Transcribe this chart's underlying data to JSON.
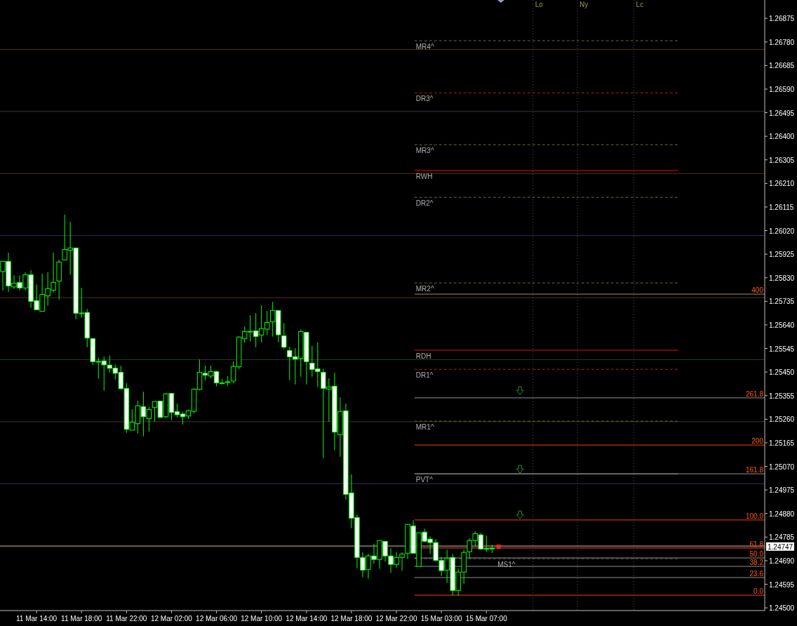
{
  "chart_data": {
    "type": "candlestick",
    "categories": [
      null,
      null,
      null,
      null,
      null,
      null,
      "11 Mar 14:00",
      null,
      null,
      null,
      null,
      null,
      null,
      null,
      "11 Mar 18:00",
      null,
      null,
      null,
      null,
      null,
      null,
      null,
      "11 Mar 22:00",
      null,
      null,
      null,
      null,
      null,
      null,
      null,
      "12 Mar 02:00",
      null,
      null,
      null,
      null,
      null,
      null,
      null,
      "12 Mar 06:00",
      null,
      null,
      null,
      null,
      null,
      null,
      null,
      "12 Mar 10:00",
      null,
      null,
      null,
      null,
      null,
      null,
      null,
      "12 Mar 14:00",
      null,
      null,
      null,
      null,
      null,
      null,
      null,
      "12 Mar 18:00",
      null,
      null,
      null,
      null,
      null,
      null,
      null,
      "12 Mar 22:00",
      null,
      null,
      null,
      null,
      null,
      null,
      null,
      "15 Mar 03:00",
      null,
      null,
      null,
      null,
      null,
      null,
      null,
      "15 Mar 07:00",
      null,
      null,
      null,
      null,
      null,
      null,
      null,
      null,
      null,
      null,
      null,
      null,
      null,
      null,
      null,
      null,
      null,
      null,
      null,
      null,
      null,
      null,
      null,
      null,
      null,
      null,
      null,
      null,
      null,
      null,
      null,
      null,
      null,
      null,
      null,
      null,
      null,
      null,
      null,
      null,
      null,
      null,
      null,
      null,
      null,
      null,
      null,
      null,
      null
    ],
    "ohlc": [
      [
        1.25855,
        1.25896,
        1.25778,
        1.25896
      ],
      [
        1.25896,
        1.25931,
        1.25773,
        1.25797
      ],
      [
        1.25793,
        1.2584,
        1.25785,
        1.25808
      ],
      [
        1.25811,
        1.25838,
        1.25779,
        1.25789
      ],
      [
        1.25789,
        1.25852,
        1.25779,
        1.25842
      ],
      [
        1.25842,
        1.2586,
        1.25709,
        1.25735
      ],
      [
        1.25738,
        1.25803,
        1.25701,
        1.25701
      ],
      [
        1.25695,
        1.25846,
        1.25695,
        1.25763
      ],
      [
        1.25757,
        1.25852,
        1.25717,
        1.25786
      ],
      [
        1.2578,
        1.25931,
        1.25771,
        1.25811
      ],
      [
        1.25817,
        1.25903,
        1.25742,
        1.25893
      ],
      [
        1.25902,
        1.26084,
        1.25899,
        1.25944
      ],
      [
        1.25941,
        1.26055,
        1.25841,
        1.2595
      ],
      [
        1.2595,
        1.2595,
        1.25663,
        1.25687
      ],
      [
        1.25688,
        1.25789,
        1.25669,
        1.25688
      ],
      [
        1.2569,
        1.25704,
        1.2555,
        1.25587
      ],
      [
        1.25585,
        1.25585,
        1.25479,
        1.25492
      ],
      [
        1.25493,
        1.25509,
        1.25423,
        1.25493
      ],
      [
        1.25495,
        1.25512,
        1.25375,
        1.25479
      ],
      [
        1.25478,
        1.25517,
        1.25448,
        1.25465
      ],
      [
        1.25466,
        1.2548,
        1.2542,
        1.25445
      ],
      [
        1.25449,
        1.25475,
        1.25379,
        1.25383
      ],
      [
        1.25384,
        1.25405,
        1.25205,
        1.25219
      ],
      [
        1.25216,
        1.253,
        1.25216,
        1.25248
      ],
      [
        1.25242,
        1.25334,
        1.25202,
        1.25314
      ],
      [
        1.25311,
        1.25371,
        1.25191,
        1.2527
      ],
      [
        1.25262,
        1.25309,
        1.2521,
        1.25299
      ],
      [
        1.25307,
        1.25331,
        1.25249,
        1.25331
      ],
      [
        1.25333,
        1.25333,
        1.25265,
        1.25267
      ],
      [
        1.2527,
        1.25365,
        1.25265,
        1.25362
      ],
      [
        1.25364,
        1.25364,
        1.25256,
        1.25287
      ],
      [
        1.25291,
        1.25323,
        1.25267,
        1.25278
      ],
      [
        1.25281,
        1.2529,
        1.25239,
        1.2527
      ],
      [
        1.25273,
        1.25299,
        1.25262,
        1.25294
      ],
      [
        1.25292,
        1.25384,
        1.25284,
        1.25381
      ],
      [
        1.2538,
        1.25501,
        1.25377,
        1.25449
      ],
      [
        1.25445,
        1.25476,
        1.25416,
        1.25437
      ],
      [
        1.25434,
        1.25476,
        1.25425,
        1.25452
      ],
      [
        1.25452,
        1.25455,
        1.25392,
        1.25406
      ],
      [
        1.25406,
        1.25422,
        1.254,
        1.25406
      ],
      [
        1.25411,
        1.25433,
        1.25394,
        1.25411
      ],
      [
        1.25414,
        1.25493,
        1.25405,
        1.25472
      ],
      [
        1.25471,
        1.25594,
        1.25462,
        1.25591
      ],
      [
        1.25584,
        1.25633,
        1.25569,
        1.25613
      ],
      [
        1.25614,
        1.25679,
        1.25573,
        1.25614
      ],
      [
        1.25616,
        1.25688,
        1.2555,
        1.25593
      ],
      [
        1.25599,
        1.25719,
        1.25569,
        1.25625
      ],
      [
        1.25623,
        1.25696,
        1.25599,
        1.2565
      ],
      [
        1.25652,
        1.25733,
        1.25593,
        1.25698
      ],
      [
        1.25698,
        1.25701,
        1.2557,
        1.256
      ],
      [
        1.25596,
        1.25647,
        1.25542,
        1.2555
      ],
      [
        1.25537,
        1.25552,
        1.25417,
        1.25511
      ],
      [
        1.25512,
        1.25546,
        1.254,
        1.25502
      ],
      [
        1.25505,
        1.25622,
        1.25431,
        1.25613
      ],
      [
        1.2561,
        1.2561,
        1.254,
        1.25492
      ],
      [
        1.25486,
        1.25555,
        1.25431,
        1.2546
      ],
      [
        1.25463,
        1.25569,
        1.25389,
        1.25452
      ],
      [
        1.25449,
        1.25463,
        1.25103,
        1.25384
      ],
      [
        1.25381,
        1.25425,
        1.2525,
        1.2539
      ],
      [
        1.25393,
        1.25447,
        1.25135,
        1.25208
      ],
      [
        1.25197,
        1.25348,
        1.25109,
        1.25291
      ],
      [
        1.25294,
        1.25323,
        1.24936,
        1.24957
      ],
      [
        1.24963,
        1.25038,
        1.24821,
        1.24861
      ],
      [
        1.24864,
        1.24876,
        1.24659,
        1.24703
      ],
      [
        1.24703,
        1.24724,
        1.24623,
        1.24652
      ],
      [
        1.24655,
        1.24718,
        1.24618,
        1.24709
      ],
      [
        1.24709,
        1.24758,
        1.24678,
        1.24695
      ],
      [
        1.24695,
        1.24771,
        1.24657,
        1.24771
      ],
      [
        1.24768,
        1.24768,
        1.24686,
        1.24709
      ],
      [
        1.24709,
        1.2474,
        1.24641,
        1.24675
      ],
      [
        1.24675,
        1.24724,
        1.24661,
        1.24703
      ],
      [
        1.24703,
        1.24724,
        1.2465,
        1.24717
      ],
      [
        1.2472,
        1.24836,
        1.24697,
        1.24836
      ],
      [
        1.2483,
        1.24853,
        1.2472,
        1.2472
      ],
      [
        1.24666,
        1.24802,
        1.24666,
        1.24802
      ],
      [
        1.24805,
        1.24819,
        1.24763,
        1.24768
      ],
      [
        1.24777,
        1.24788,
        1.24717,
        1.24763
      ],
      [
        1.24763,
        1.24777,
        1.24686,
        1.24691
      ],
      [
        1.24691,
        1.24706,
        1.24629,
        1.2465
      ],
      [
        1.24652,
        1.24734,
        1.24601,
        1.247
      ],
      [
        1.24703,
        1.24717,
        1.2455,
        1.2457
      ],
      [
        1.2457,
        1.24658,
        1.2455,
        1.24644
      ],
      [
        1.24644,
        1.24734,
        1.24597,
        1.24723
      ],
      [
        1.24726,
        1.2478,
        1.247,
        1.24771
      ],
      [
        1.24771,
        1.24808,
        1.24749,
        1.24799
      ],
      [
        1.24794,
        1.24802,
        1.24734,
        1.24737
      ],
      [
        1.24739,
        1.24791,
        1.24725,
        1.24739
      ],
      [
        1.2474,
        1.24754,
        1.24721,
        1.2474
      ],
      null,
      null,
      null,
      null,
      null,
      null,
      null,
      null,
      null,
      null,
      null,
      null,
      null,
      null,
      null,
      null,
      null,
      null,
      null,
      null,
      null,
      null,
      null,
      null,
      null,
      null,
      null,
      null,
      null,
      null,
      null,
      null,
      null,
      null,
      null,
      null,
      null,
      null,
      null,
      null,
      null,
      null,
      null,
      null,
      null,
      null,
      null,
      null
    ],
    "ylim": [
      1.24489,
      1.26949
    ],
    "yticks": [
      1.26875,
      {
        "value": 1.2678,
        "label": "1.26780"
      },
      1.26685,
      {
        "value": 1.2659,
        "label": "1.26590"
      },
      1.26495,
      {
        "value": 1.264,
        "label": "1.26400"
      },
      1.26305,
      {
        "value": 1.2621,
        "label": "1.26210"
      },
      1.26115,
      {
        "value": 1.2602,
        "label": "1.26020"
      },
      1.25925,
      {
        "value": 1.2583,
        "label": "1.25830"
      },
      1.25735,
      {
        "value": 1.2564,
        "label": "1.25640"
      },
      1.25545,
      {
        "value": 1.2545,
        "label": "1.25450"
      },
      1.25355,
      {
        "value": 1.2526,
        "label": "1.25260"
      },
      1.25165,
      {
        "value": 1.2507,
        "label": "1.25070"
      },
      1.24975,
      {
        "value": 1.2488,
        "label": "1.24880"
      },
      1.24785,
      {
        "value": 1.2469,
        "label": "1.24690"
      },
      1.24595,
      {
        "value": 1.245,
        "label": "1.24500"
      }
    ],
    "ref_lines": [
      {
        "axis": "y",
        "value": 1.2675,
        "color": "#4a3525"
      },
      {
        "axis": "y",
        "value": 1.265,
        "color": "#3c3040"
      },
      {
        "axis": "y",
        "value": 1.2625,
        "color": "#4a3525"
      },
      {
        "axis": "y",
        "value": 1.26,
        "color": "#2f2f6b"
      },
      {
        "axis": "y",
        "value": 1.2575,
        "color": "#4a3525"
      },
      {
        "axis": "y",
        "value": 1.255,
        "color": "#213f21"
      },
      {
        "axis": "y",
        "value": 1.2525,
        "color": "#4a3525"
      },
      {
        "axis": "y",
        "value": 1.25,
        "color": "#2f2f6b"
      },
      {
        "axis": "y",
        "value": 1.2475,
        "color": "#8a6a4a"
      },
      {
        "axis": "y",
        "value": 1.26785,
        "label": "MR4^",
        "color": "#6b6b2a",
        "line_style": "dashed"
      },
      {
        "axis": "y",
        "value": 1.26575,
        "label": "DR3^",
        "color": "#b02020",
        "line_style": "dashed"
      },
      {
        "axis": "y",
        "value": 1.26366,
        "label": "MR3^",
        "color": "#6b6b2a",
        "line_style": "dashed"
      },
      {
        "axis": "y",
        "value": 1.26262,
        "label": "RWH",
        "color": "#ff0000",
        "line_style": "solid"
      },
      {
        "axis": "y",
        "value": 1.26154,
        "label": "DR2^",
        "color": "#6b6b2a",
        "line_style": "dashed"
      },
      {
        "axis": "y",
        "value": 1.25809,
        "label": "MR2^",
        "color": "#6b6b2a",
        "line_style": "dashed"
      },
      {
        "axis": "y",
        "value": 1.25538,
        "label": "RDH",
        "color": "#e01010",
        "line_style": "solid"
      },
      {
        "axis": "y",
        "value": 1.25461,
        "label": "DR1^",
        "color": "#b02020",
        "line_style": "dashed"
      },
      {
        "axis": "y",
        "value": 1.25252,
        "label": "MR1^",
        "color": "#6b6b2a",
        "line_style": "dashed"
      },
      {
        "axis": "y",
        "value": 1.2504,
        "label": "PVT^",
        "color": "#808080",
        "line_style": "solid"
      },
      {
        "axis": "y",
        "value": 1.24698,
        "label": "MS1^",
        "color": "#6a5a4a",
        "line_style": "dashed"
      },
      {
        "axis": "y",
        "value": 1.25764,
        "color": "#909090",
        "line_style": "solid"
      },
      {
        "axis": "y",
        "value": 1.25346,
        "color": "#909090",
        "line_style": "solid"
      },
      {
        "axis": "y",
        "value": 1.25156,
        "color": "#ff3a10",
        "line_style": "solid"
      },
      {
        "axis": "y",
        "value": 1.2504,
        "color": "#909090",
        "line_style": "solid"
      },
      {
        "axis": "y",
        "value": 1.24854,
        "color": "#ff3a10",
        "line_style": "solid"
      },
      {
        "axis": "y",
        "value": 1.24741,
        "color": "#ff3a10",
        "line_style": "solid"
      },
      {
        "axis": "y",
        "value": 1.24701,
        "color": "#909090",
        "line_style": "solid"
      },
      {
        "axis": "y",
        "value": 1.24667,
        "color": "#909090",
        "line_style": "solid"
      },
      {
        "axis": "y",
        "value": 1.24622,
        "color": "#909090",
        "line_style": "solid"
      },
      {
        "axis": "y",
        "value": 1.24551,
        "color": "#ff3a10",
        "line_style": "solid"
      },
      {
        "axis": "y",
        "value": 1.24747,
        "label": "1.24747",
        "color": "#707070",
        "line_style": "solid"
      }
    ],
    "annotations": [
      "Lo",
      "Ny",
      "Lc",
      {
        "text": "400",
        "y": 1.25764
      },
      {
        "text": "261.8",
        "y": 1.25346
      },
      {
        "text": "200",
        "y": 1.25156
      },
      {
        "text": "161.8",
        "y": 1.2504
      },
      {
        "text": "100.0",
        "y": 1.24854
      },
      {
        "text": "61.8",
        "y": 1.24741
      },
      {
        "text": "50.0",
        "y": 1.24701
      },
      {
        "text": "38.2",
        "y": 1.24667
      },
      {
        "text": "23.6",
        "y": 1.24622
      },
      {
        "text": "0.0",
        "y": 1.24551
      }
    ]
  }
}
